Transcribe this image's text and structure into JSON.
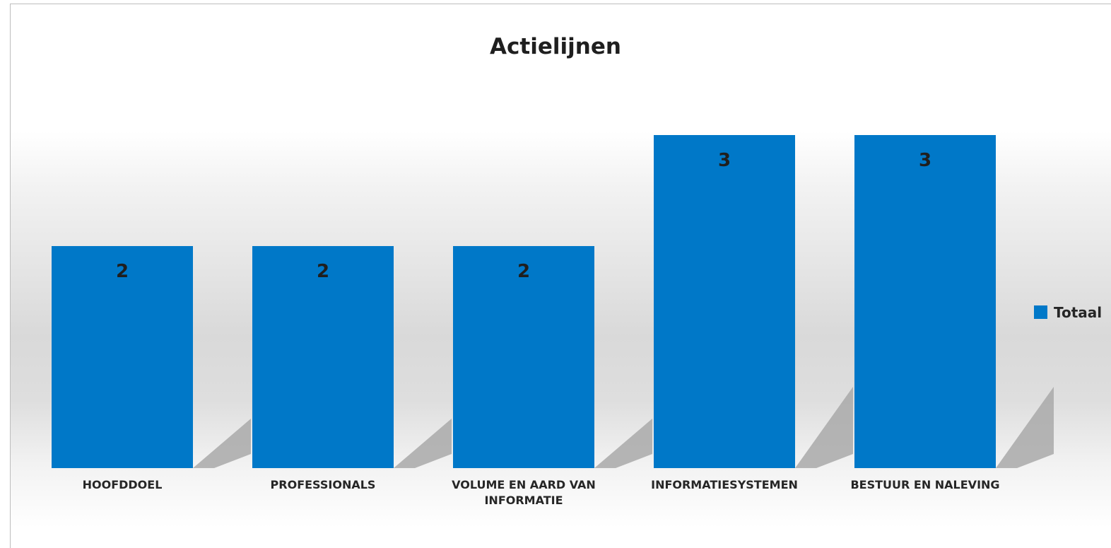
{
  "chart_data": {
    "type": "bar",
    "title": "Actielijnen",
    "categories": [
      "HOOFDDOEL",
      "PROFESSIONALS",
      "VOLUME EN AARD VAN INFORMATIE",
      "INFORMATIESYSTEMEN",
      "BESTUUR EN NALEVING"
    ],
    "category_label_lines": [
      [
        "HOOFDDOEL"
      ],
      [
        "PROFESSIONALS"
      ],
      [
        "VOLUME EN AARD VAN",
        "INFORMATIE"
      ],
      [
        "INFORMATIESYSTEMEN"
      ],
      [
        "BESTUUR EN NALEVING"
      ]
    ],
    "series": [
      {
        "name": "Totaal",
        "values": [
          2,
          2,
          2,
          3,
          3
        ]
      }
    ],
    "data_labels": [
      "2",
      "2",
      "2",
      "3",
      "3"
    ],
    "legend": {
      "position": "right",
      "entries": [
        "Totaal"
      ]
    },
    "grid": false,
    "xlabel": "",
    "ylabel": "",
    "colors": {
      "bar": "#0078c8",
      "shadow": "#a9a9a9"
    }
  }
}
